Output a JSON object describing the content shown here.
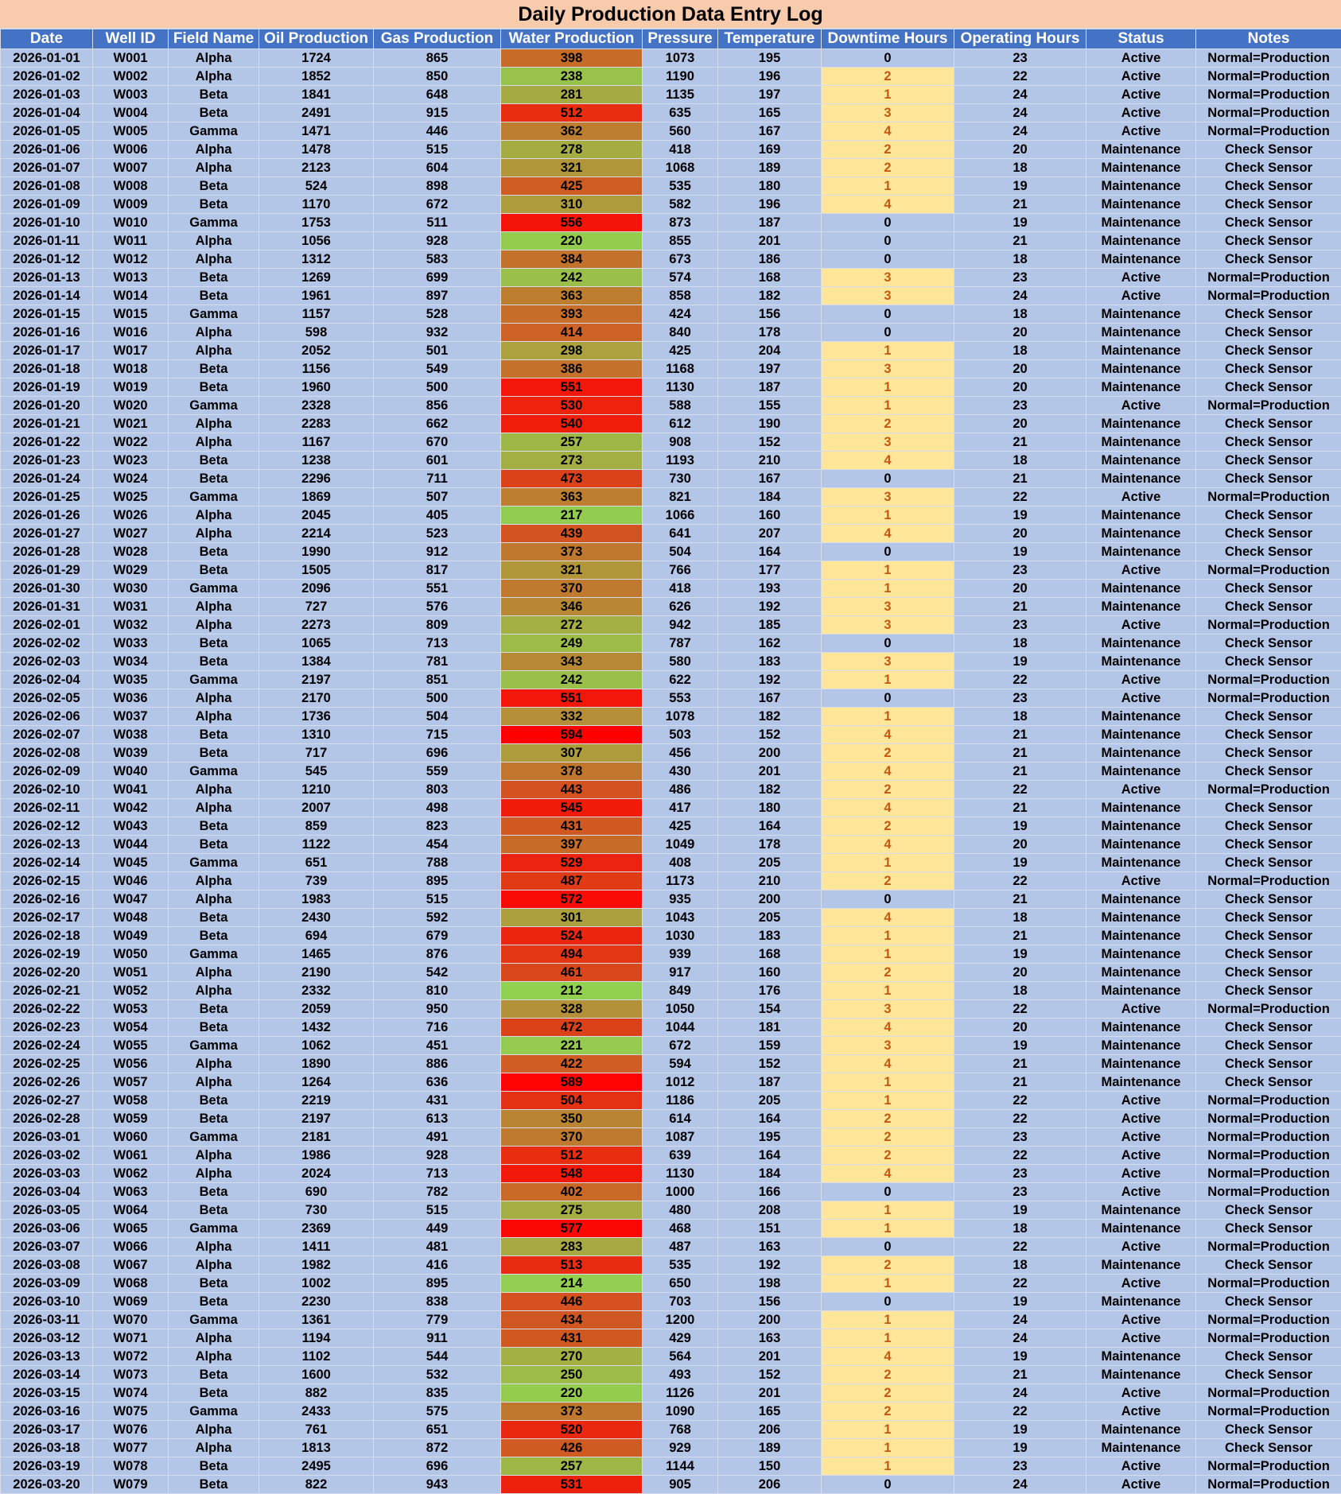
{
  "title": "Daily Production Data Entry Log",
  "table": {
    "headers": [
      "Date",
      "Well ID",
      "Field Name",
      "Oil Production",
      "Gas Production",
      "Water Production",
      "Pressure",
      "Temperature",
      "Downtime Hours",
      "Operating Hours",
      "Status",
      "Notes"
    ],
    "rows": [
      [
        "2026-01-01",
        "W001",
        "Alpha",
        1724,
        865,
        398,
        1073,
        195,
        0,
        23,
        "Active",
        "Normal=Production"
      ],
      [
        "2026-01-02",
        "W002",
        "Alpha",
        1852,
        850,
        238,
        1190,
        196,
        2,
        22,
        "Active",
        "Normal=Production"
      ],
      [
        "2026-01-03",
        "W003",
        "Beta",
        1841,
        648,
        281,
        1135,
        197,
        1,
        24,
        "Active",
        "Normal=Production"
      ],
      [
        "2026-01-04",
        "W004",
        "Beta",
        2491,
        915,
        512,
        635,
        165,
        3,
        24,
        "Active",
        "Normal=Production"
      ],
      [
        "2026-01-05",
        "W005",
        "Gamma",
        1471,
        446,
        362,
        560,
        167,
        4,
        24,
        "Active",
        "Normal=Production"
      ],
      [
        "2026-01-06",
        "W006",
        "Alpha",
        1478,
        515,
        278,
        418,
        169,
        2,
        20,
        "Maintenance",
        "Check Sensor"
      ],
      [
        "2026-01-07",
        "W007",
        "Alpha",
        2123,
        604,
        321,
        1068,
        189,
        2,
        18,
        "Maintenance",
        "Check Sensor"
      ],
      [
        "2026-01-08",
        "W008",
        "Beta",
        524,
        898,
        425,
        535,
        180,
        1,
        19,
        "Maintenance",
        "Check Sensor"
      ],
      [
        "2026-01-09",
        "W009",
        "Beta",
        1170,
        672,
        310,
        582,
        196,
        4,
        21,
        "Maintenance",
        "Check Sensor"
      ],
      [
        "2026-01-10",
        "W010",
        "Gamma",
        1753,
        511,
        556,
        873,
        187,
        0,
        19,
        "Maintenance",
        "Check Sensor"
      ],
      [
        "2026-01-11",
        "W011",
        "Alpha",
        1056,
        928,
        220,
        855,
        201,
        0,
        21,
        "Maintenance",
        "Check Sensor"
      ],
      [
        "2026-01-12",
        "W012",
        "Alpha",
        1312,
        583,
        384,
        673,
        186,
        0,
        18,
        "Maintenance",
        "Check Sensor"
      ],
      [
        "2026-01-13",
        "W013",
        "Beta",
        1269,
        699,
        242,
        574,
        168,
        3,
        23,
        "Active",
        "Normal=Production"
      ],
      [
        "2026-01-14",
        "W014",
        "Beta",
        1961,
        897,
        363,
        858,
        182,
        3,
        24,
        "Active",
        "Normal=Production"
      ],
      [
        "2026-01-15",
        "W015",
        "Gamma",
        1157,
        528,
        393,
        424,
        156,
        0,
        18,
        "Maintenance",
        "Check Sensor"
      ],
      [
        "2026-01-16",
        "W016",
        "Alpha",
        598,
        932,
        414,
        840,
        178,
        0,
        20,
        "Maintenance",
        "Check Sensor"
      ],
      [
        "2026-01-17",
        "W017",
        "Alpha",
        2052,
        501,
        298,
        425,
        204,
        1,
        18,
        "Maintenance",
        "Check Sensor"
      ],
      [
        "2026-01-18",
        "W018",
        "Beta",
        1156,
        549,
        386,
        1168,
        197,
        3,
        20,
        "Maintenance",
        "Check Sensor"
      ],
      [
        "2026-01-19",
        "W019",
        "Beta",
        1960,
        500,
        551,
        1130,
        187,
        1,
        20,
        "Maintenance",
        "Check Sensor"
      ],
      [
        "2026-01-20",
        "W020",
        "Gamma",
        2328,
        856,
        530,
        588,
        155,
        1,
        23,
        "Active",
        "Normal=Production"
      ],
      [
        "2026-01-21",
        "W021",
        "Alpha",
        2283,
        662,
        540,
        612,
        190,
        2,
        20,
        "Maintenance",
        "Check Sensor"
      ],
      [
        "2026-01-22",
        "W022",
        "Alpha",
        1167,
        670,
        257,
        908,
        152,
        3,
        21,
        "Maintenance",
        "Check Sensor"
      ],
      [
        "2026-01-23",
        "W023",
        "Beta",
        1238,
        601,
        273,
        1193,
        210,
        4,
        18,
        "Maintenance",
        "Check Sensor"
      ],
      [
        "2026-01-24",
        "W024",
        "Beta",
        2296,
        711,
        473,
        730,
        167,
        0,
        21,
        "Maintenance",
        "Check Sensor"
      ],
      [
        "2026-01-25",
        "W025",
        "Gamma",
        1869,
        507,
        363,
        821,
        184,
        3,
        22,
        "Active",
        "Normal=Production"
      ],
      [
        "2026-01-26",
        "W026",
        "Alpha",
        2045,
        405,
        217,
        1066,
        160,
        1,
        19,
        "Maintenance",
        "Check Sensor"
      ],
      [
        "2026-01-27",
        "W027",
        "Alpha",
        2214,
        523,
        439,
        641,
        207,
        4,
        20,
        "Maintenance",
        "Check Sensor"
      ],
      [
        "2026-01-28",
        "W028",
        "Beta",
        1990,
        912,
        373,
        504,
        164,
        0,
        19,
        "Maintenance",
        "Check Sensor"
      ],
      [
        "2026-01-29",
        "W029",
        "Beta",
        1505,
        817,
        321,
        766,
        177,
        1,
        23,
        "Active",
        "Normal=Production"
      ],
      [
        "2026-01-30",
        "W030",
        "Gamma",
        2096,
        551,
        370,
        418,
        193,
        1,
        20,
        "Maintenance",
        "Check Sensor"
      ],
      [
        "2026-01-31",
        "W031",
        "Alpha",
        727,
        576,
        346,
        626,
        192,
        3,
        21,
        "Maintenance",
        "Check Sensor"
      ],
      [
        "2026-02-01",
        "W032",
        "Alpha",
        2273,
        809,
        272,
        942,
        185,
        3,
        23,
        "Active",
        "Normal=Production"
      ],
      [
        "2026-02-02",
        "W033",
        "Beta",
        1065,
        713,
        249,
        787,
        162,
        0,
        18,
        "Maintenance",
        "Check Sensor"
      ],
      [
        "2026-02-03",
        "W034",
        "Beta",
        1384,
        781,
        343,
        580,
        183,
        3,
        19,
        "Maintenance",
        "Check Sensor"
      ],
      [
        "2026-02-04",
        "W035",
        "Gamma",
        2197,
        851,
        242,
        622,
        192,
        1,
        22,
        "Active",
        "Normal=Production"
      ],
      [
        "2026-02-05",
        "W036",
        "Alpha",
        2170,
        500,
        551,
        553,
        167,
        0,
        23,
        "Active",
        "Normal=Production"
      ],
      [
        "2026-02-06",
        "W037",
        "Alpha",
        1736,
        504,
        332,
        1078,
        182,
        1,
        18,
        "Maintenance",
        "Check Sensor"
      ],
      [
        "2026-02-07",
        "W038",
        "Beta",
        1310,
        715,
        594,
        503,
        152,
        4,
        21,
        "Maintenance",
        "Check Sensor"
      ],
      [
        "2026-02-08",
        "W039",
        "Beta",
        717,
        696,
        307,
        456,
        200,
        2,
        21,
        "Maintenance",
        "Check Sensor"
      ],
      [
        "2026-02-09",
        "W040",
        "Gamma",
        545,
        559,
        378,
        430,
        201,
        4,
        21,
        "Maintenance",
        "Check Sensor"
      ],
      [
        "2026-02-10",
        "W041",
        "Alpha",
        1210,
        803,
        443,
        486,
        182,
        2,
        22,
        "Active",
        "Normal=Production"
      ],
      [
        "2026-02-11",
        "W042",
        "Alpha",
        2007,
        498,
        545,
        417,
        180,
        4,
        21,
        "Maintenance",
        "Check Sensor"
      ],
      [
        "2026-02-12",
        "W043",
        "Beta",
        859,
        823,
        431,
        425,
        164,
        2,
        19,
        "Maintenance",
        "Check Sensor"
      ],
      [
        "2026-02-13",
        "W044",
        "Beta",
        1122,
        454,
        397,
        1049,
        178,
        4,
        20,
        "Maintenance",
        "Check Sensor"
      ],
      [
        "2026-02-14",
        "W045",
        "Gamma",
        651,
        788,
        529,
        408,
        205,
        1,
        19,
        "Maintenance",
        "Check Sensor"
      ],
      [
        "2026-02-15",
        "W046",
        "Alpha",
        739,
        895,
        487,
        1173,
        210,
        2,
        22,
        "Active",
        "Normal=Production"
      ],
      [
        "2026-02-16",
        "W047",
        "Alpha",
        1983,
        515,
        572,
        935,
        200,
        0,
        21,
        "Maintenance",
        "Check Sensor"
      ],
      [
        "2026-02-17",
        "W048",
        "Beta",
        2430,
        592,
        301,
        1043,
        205,
        4,
        18,
        "Maintenance",
        "Check Sensor"
      ],
      [
        "2026-02-18",
        "W049",
        "Beta",
        694,
        679,
        524,
        1030,
        183,
        1,
        21,
        "Maintenance",
        "Check Sensor"
      ],
      [
        "2026-02-19",
        "W050",
        "Gamma",
        1465,
        876,
        494,
        939,
        168,
        1,
        19,
        "Maintenance",
        "Check Sensor"
      ],
      [
        "2026-02-20",
        "W051",
        "Alpha",
        2190,
        542,
        461,
        917,
        160,
        2,
        20,
        "Maintenance",
        "Check Sensor"
      ],
      [
        "2026-02-21",
        "W052",
        "Alpha",
        2332,
        810,
        212,
        849,
        176,
        1,
        18,
        "Maintenance",
        "Check Sensor"
      ],
      [
        "2026-02-22",
        "W053",
        "Beta",
        2059,
        950,
        328,
        1050,
        154,
        3,
        22,
        "Active",
        "Normal=Production"
      ],
      [
        "2026-02-23",
        "W054",
        "Beta",
        1432,
        716,
        472,
        1044,
        181,
        4,
        20,
        "Maintenance",
        "Check Sensor"
      ],
      [
        "2026-02-24",
        "W055",
        "Gamma",
        1062,
        451,
        221,
        672,
        159,
        3,
        19,
        "Maintenance",
        "Check Sensor"
      ],
      [
        "2026-02-25",
        "W056",
        "Alpha",
        1890,
        886,
        422,
        594,
        152,
        4,
        21,
        "Maintenance",
        "Check Sensor"
      ],
      [
        "2026-02-26",
        "W057",
        "Alpha",
        1264,
        636,
        589,
        1012,
        187,
        1,
        21,
        "Maintenance",
        "Check Sensor"
      ],
      [
        "2026-02-27",
        "W058",
        "Beta",
        2219,
        431,
        504,
        1186,
        205,
        1,
        22,
        "Active",
        "Normal=Production"
      ],
      [
        "2026-02-28",
        "W059",
        "Beta",
        2197,
        613,
        350,
        614,
        164,
        2,
        22,
        "Active",
        "Normal=Production"
      ],
      [
        "2026-03-01",
        "W060",
        "Gamma",
        2181,
        491,
        370,
        1087,
        195,
        2,
        23,
        "Active",
        "Normal=Production"
      ],
      [
        "2026-03-02",
        "W061",
        "Alpha",
        1986,
        928,
        512,
        639,
        164,
        2,
        22,
        "Active",
        "Normal=Production"
      ],
      [
        "2026-03-03",
        "W062",
        "Alpha",
        2024,
        713,
        548,
        1130,
        184,
        4,
        23,
        "Active",
        "Normal=Production"
      ],
      [
        "2026-03-04",
        "W063",
        "Beta",
        690,
        782,
        402,
        1000,
        166,
        0,
        23,
        "Active",
        "Normal=Production"
      ],
      [
        "2026-03-05",
        "W064",
        "Beta",
        730,
        515,
        275,
        480,
        208,
        1,
        19,
        "Maintenance",
        "Check Sensor"
      ],
      [
        "2026-03-06",
        "W065",
        "Gamma",
        2369,
        449,
        577,
        468,
        151,
        1,
        18,
        "Maintenance",
        "Check Sensor"
      ],
      [
        "2026-03-07",
        "W066",
        "Alpha",
        1411,
        481,
        283,
        487,
        163,
        0,
        22,
        "Active",
        "Normal=Production"
      ],
      [
        "2026-03-08",
        "W067",
        "Alpha",
        1982,
        416,
        513,
        535,
        192,
        2,
        18,
        "Maintenance",
        "Check Sensor"
      ],
      [
        "2026-03-09",
        "W068",
        "Beta",
        1002,
        895,
        214,
        650,
        198,
        1,
        22,
        "Active",
        "Normal=Production"
      ],
      [
        "2026-03-10",
        "W069",
        "Beta",
        2230,
        838,
        446,
        703,
        156,
        0,
        19,
        "Maintenance",
        "Check Sensor"
      ],
      [
        "2026-03-11",
        "W070",
        "Gamma",
        1361,
        779,
        434,
        1200,
        200,
        1,
        24,
        "Active",
        "Normal=Production"
      ],
      [
        "2026-03-12",
        "W071",
        "Alpha",
        1194,
        911,
        431,
        429,
        163,
        1,
        24,
        "Active",
        "Normal=Production"
      ],
      [
        "2026-03-13",
        "W072",
        "Alpha",
        1102,
        544,
        270,
        564,
        201,
        4,
        19,
        "Maintenance",
        "Check Sensor"
      ],
      [
        "2026-03-14",
        "W073",
        "Beta",
        1600,
        532,
        250,
        493,
        152,
        2,
        21,
        "Maintenance",
        "Check Sensor"
      ],
      [
        "2026-03-15",
        "W074",
        "Beta",
        882,
        835,
        220,
        1126,
        201,
        2,
        24,
        "Active",
        "Normal=Production"
      ],
      [
        "2026-03-16",
        "W075",
        "Gamma",
        2433,
        575,
        373,
        1090,
        165,
        2,
        22,
        "Active",
        "Normal=Production"
      ],
      [
        "2026-03-17",
        "W076",
        "Alpha",
        761,
        651,
        520,
        768,
        206,
        1,
        19,
        "Maintenance",
        "Check Sensor"
      ],
      [
        "2026-03-18",
        "W077",
        "Alpha",
        1813,
        872,
        426,
        929,
        189,
        1,
        19,
        "Maintenance",
        "Check Sensor"
      ],
      [
        "2026-03-19",
        "W078",
        "Beta",
        2495,
        696,
        257,
        1144,
        150,
        1,
        23,
        "Active",
        "Normal=Production"
      ],
      [
        "2026-03-20",
        "W079",
        "Beta",
        822,
        943,
        531,
        905,
        206,
        0,
        24,
        "Active",
        "Normal=Production"
      ]
    ]
  }
}
